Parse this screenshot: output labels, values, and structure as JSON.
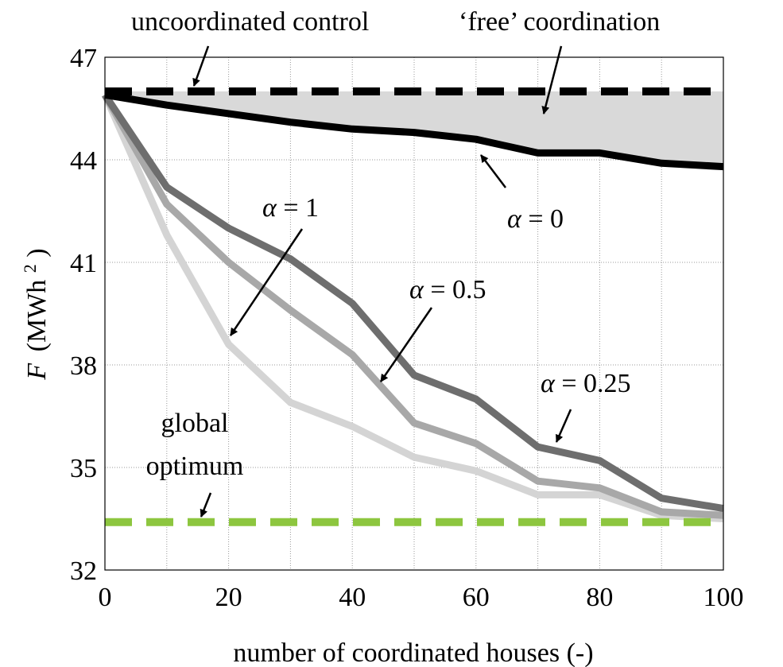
{
  "chart_data": {
    "type": "line",
    "title": "",
    "xlabel": "number of coordinated houses (-)",
    "ylabel_symbol": "F",
    "ylabel_unit": "(MWh",
    "ylabel_sup": "2",
    "ylabel_close": ")",
    "xlim": [
      0,
      100
    ],
    "ylim": [
      32,
      47
    ],
    "xticks": [
      "0",
      "20",
      "40",
      "60",
      "80",
      "100"
    ],
    "yticks": [
      "32",
      "35",
      "38",
      "41",
      "44",
      "47"
    ],
    "grid": true,
    "x": [
      0,
      10,
      20,
      30,
      40,
      50,
      60,
      70,
      80,
      90,
      100
    ],
    "series": [
      {
        "key": "a0",
        "color": "#000000",
        "values": [
          45.9,
          45.6,
          45.35,
          45.1,
          44.9,
          44.8,
          44.6,
          44.2,
          44.2,
          43.9,
          43.8
        ]
      },
      {
        "key": "a025",
        "color": "#6e6e6e",
        "values": [
          45.9,
          43.2,
          42.0,
          41.1,
          39.8,
          37.7,
          37.0,
          35.6,
          35.2,
          34.1,
          33.8
        ]
      },
      {
        "key": "a05",
        "color": "#a8a8a8",
        "values": [
          45.9,
          42.7,
          41.0,
          39.6,
          38.3,
          36.3,
          35.7,
          34.6,
          34.4,
          33.7,
          33.6
        ]
      },
      {
        "key": "a1",
        "color": "#d4d4d4",
        "values": [
          45.9,
          41.8,
          38.6,
          36.9,
          36.2,
          35.3,
          34.9,
          34.2,
          34.2,
          33.6,
          33.5
        ]
      }
    ],
    "reference_lines": [
      {
        "key": "uncoordinated",
        "value": 46.0,
        "color": "#000000"
      },
      {
        "key": "global_optimum",
        "value": 33.4,
        "color": "#8dc63f"
      }
    ],
    "shaded_region": {
      "between": [
        "uncoordinated",
        "a0"
      ],
      "color": "#d9d9d9"
    },
    "annotations": {
      "uncoordinated": "uncoordinated control",
      "free": "‘free’ coordination",
      "global_line1": "global",
      "global_line2": "optimum",
      "a0_sym": "α",
      "a0_val": " = 0",
      "a1_sym": "α",
      "a1_val": " = 1",
      "a05_sym": "α",
      "a05_val": " = 0.5",
      "a025_sym": "α",
      "a025_val": " = 0.25"
    }
  }
}
